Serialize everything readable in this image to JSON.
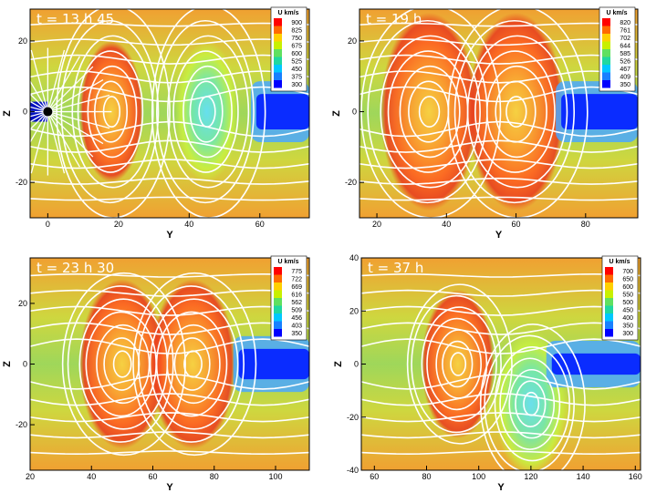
{
  "chart_data": [
    {
      "type": "heatmap",
      "title": "t = 13 h 45",
      "xlabel": "Y",
      "ylabel": "Z",
      "xlim": [
        -5,
        74
      ],
      "ylim": [
        -30,
        29
      ],
      "xticks": [
        0,
        20,
        40,
        60
      ],
      "yticks": [
        -20,
        0,
        20
      ],
      "colorbar": {
        "title": "U km/s",
        "values": [
          900,
          825,
          750,
          675,
          600,
          525,
          450,
          375,
          300
        ]
      },
      "vortices": [
        {
          "x": 18,
          "z": 0
        },
        {
          "x": 45,
          "z": 0
        }
      ],
      "planet": {
        "x": 0,
        "z": 0
      },
      "low_speed_channel": {
        "x_start": 59,
        "z_halfwidth": 5
      }
    },
    {
      "type": "heatmap",
      "title": "t = 19 h",
      "xlabel": "Y",
      "ylabel": "Z",
      "xlim": [
        15,
        95
      ],
      "ylim": [
        -30,
        29
      ],
      "xticks": [
        20,
        40,
        60,
        80
      ],
      "yticks": [
        -20,
        0,
        20
      ],
      "colorbar": {
        "title": "U km/s",
        "values": [
          820,
          761,
          702,
          644,
          585,
          526,
          467,
          409,
          350
        ]
      },
      "vortices": [
        {
          "x": 35,
          "z": 0
        },
        {
          "x": 60,
          "z": 0
        }
      ],
      "low_speed_channel": {
        "x_start": 73,
        "z_halfwidth": 5
      }
    },
    {
      "type": "heatmap",
      "title": "t = 23 h 30",
      "xlabel": "Y",
      "ylabel": "Z",
      "xlim": [
        20,
        111
      ],
      "ylim": [
        -35,
        35
      ],
      "xticks": [
        20,
        40,
        60,
        80,
        100
      ],
      "yticks": [
        -20,
        0,
        20
      ],
      "colorbar": {
        "title": "U km/s",
        "values": [
          775,
          722,
          669,
          616,
          562,
          509,
          456,
          403,
          350
        ]
      },
      "vortices": [
        {
          "x": 50,
          "z": 0
        },
        {
          "x": 73,
          "z": 0
        }
      ],
      "low_speed_channel": {
        "x_start": 88,
        "z_halfwidth": 5
      }
    },
    {
      "type": "heatmap",
      "title": "t = 37 h",
      "xlabel": "Y",
      "ylabel": "Z",
      "xlim": [
        55,
        162
      ],
      "ylim": [
        -40,
        40
      ],
      "xticks": [
        60,
        80,
        100,
        120,
        140,
        160
      ],
      "yticks": [
        -40,
        -20,
        0,
        20,
        40
      ],
      "colorbar": {
        "title": "U km/s",
        "values": [
          700,
          650,
          600,
          550,
          500,
          450,
          400,
          350,
          300
        ]
      },
      "vortices": [
        {
          "x": 92,
          "z": 0
        },
        {
          "x": 120,
          "z": -15
        }
      ],
      "low_speed_channel": {
        "x_start": 128,
        "z_halfwidth": 4
      }
    }
  ]
}
